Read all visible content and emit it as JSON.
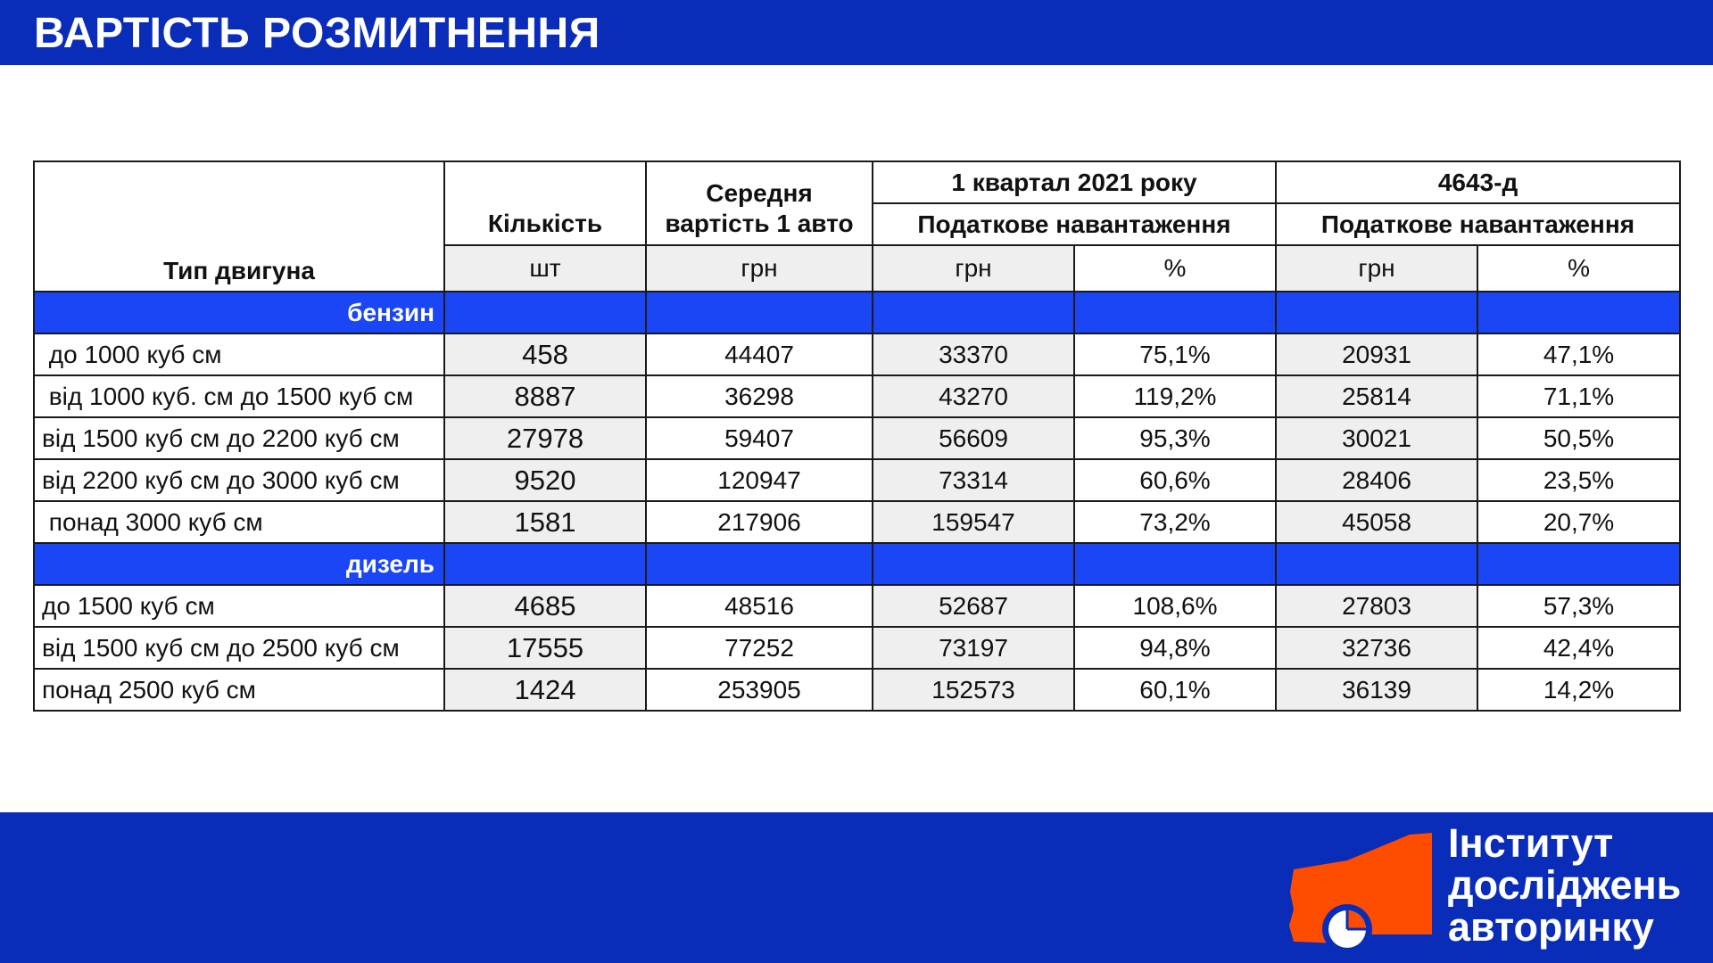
{
  "header": {
    "title": "ВАРТІСТЬ РОЗМИТНЕННЯ"
  },
  "table": {
    "col_type": "Тип двигуна",
    "col_qty": "Кількість",
    "col_avg": "Середня вартість 1 авто",
    "col_avg_line1": "Середня",
    "col_avg_line2": "вартість 1 авто",
    "group1": "1 квартал 2021 року",
    "group2": "4643-д",
    "tax_label": "Податкове навантаження",
    "units": {
      "qty": "шт",
      "avg": "грн",
      "g1_uah": "грн",
      "g1_pct": "%",
      "g2_uah": "грн",
      "g2_pct": "%"
    },
    "sections": [
      {
        "label": "бензин",
        "rows": [
          {
            "name": " до 1000 куб см",
            "qty": "458",
            "avg": "44407",
            "q1_uah": "33370",
            "q1_pct": "75,1%",
            "d_uah": "20931",
            "d_pct": "47,1%"
          },
          {
            "name": " від 1000 куб. см до 1500 куб см",
            "qty": "8887",
            "avg": "36298",
            "q1_uah": "43270",
            "q1_pct": "119,2%",
            "d_uah": "25814",
            "d_pct": "71,1%"
          },
          {
            "name": "від 1500 куб см до 2200 куб см",
            "qty": "27978",
            "avg": "59407",
            "q1_uah": "56609",
            "q1_pct": "95,3%",
            "d_uah": "30021",
            "d_pct": "50,5%"
          },
          {
            "name": "від 2200 куб см до 3000 куб см",
            "qty": "9520",
            "avg": "120947",
            "q1_uah": "73314",
            "q1_pct": "60,6%",
            "d_uah": "28406",
            "d_pct": "23,5%"
          },
          {
            "name": " понад 3000 куб см",
            "qty": "1581",
            "avg": "217906",
            "q1_uah": "159547",
            "q1_pct": "73,2%",
            "d_uah": "45058",
            "d_pct": "20,7%"
          }
        ]
      },
      {
        "label": "дизель",
        "rows": [
          {
            "name": "до 1500 куб см",
            "qty": "4685",
            "avg": "48516",
            "q1_uah": "52687",
            "q1_pct": "108,6%",
            "d_uah": "27803",
            "d_pct": "57,3%"
          },
          {
            "name": "від 1500 куб см до 2500 куб см",
            "qty": "17555",
            "avg": "77252",
            "q1_uah": "73197",
            "q1_pct": "94,8%",
            "d_uah": "32736",
            "d_pct": "42,4%"
          },
          {
            "name": "понад 2500 куб см",
            "qty": "1424",
            "avg": "253905",
            "q1_uah": "152573",
            "q1_pct": "60,1%",
            "d_uah": "36139",
            "d_pct": "14,2%"
          }
        ]
      }
    ]
  },
  "logo": {
    "lines": [
      "Інститут",
      "досліджень",
      "авторинку"
    ],
    "colors": {
      "accent": "#ff4d00",
      "brand": "#0a2db9",
      "section": "#1b46f5"
    },
    "icon": "car-pie-chart-icon"
  }
}
